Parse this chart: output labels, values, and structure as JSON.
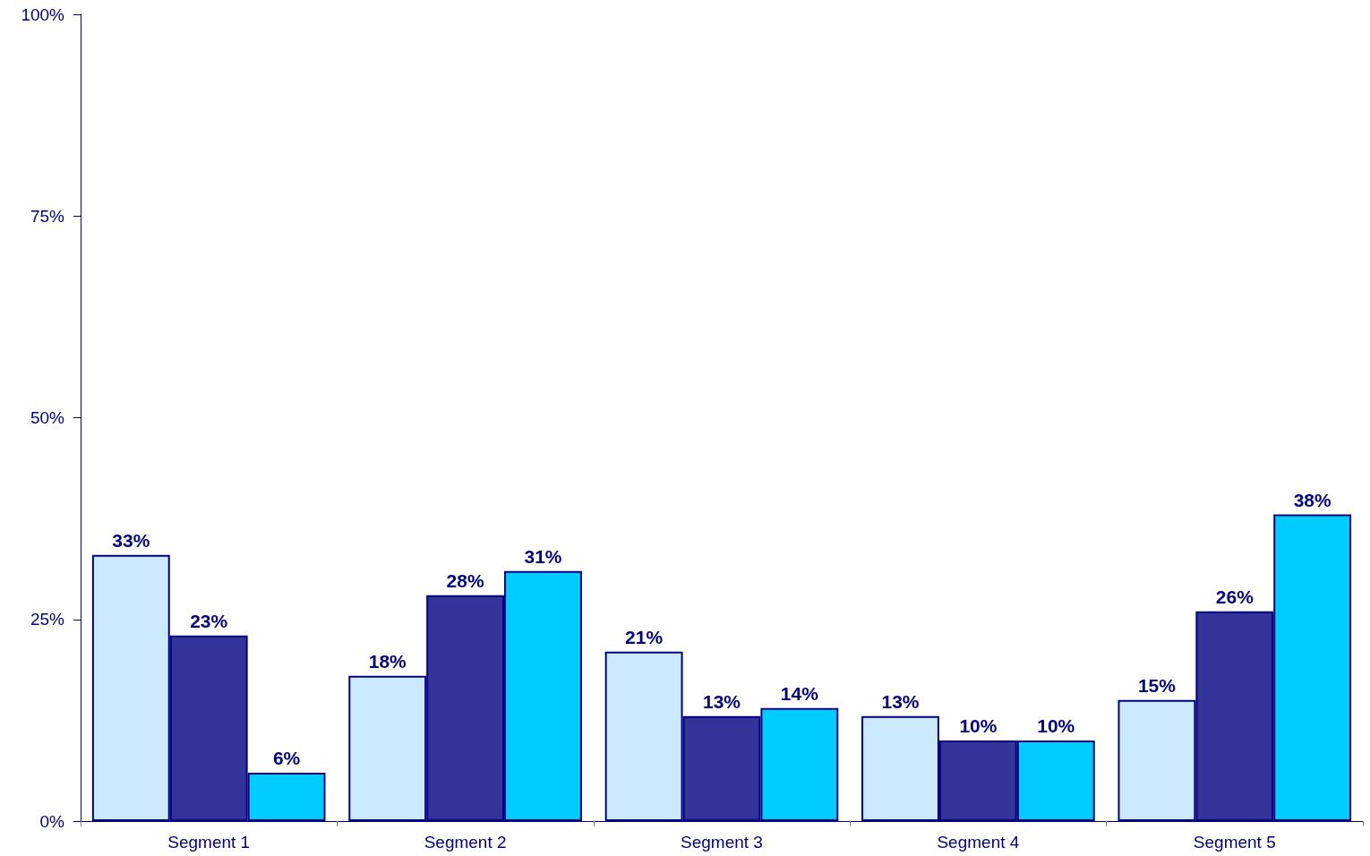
{
  "chart_data": {
    "type": "bar",
    "categories": [
      "Segment 1",
      "Segment 2",
      "Segment 3",
      "Segment 4",
      "Segment 5"
    ],
    "ylim": [
      0,
      100
    ],
    "yticks": [
      {
        "value": 0,
        "label": "0%"
      },
      {
        "value": 25,
        "label": "25%"
      },
      {
        "value": 50,
        "label": "50%"
      },
      {
        "value": 75,
        "label": "75%"
      },
      {
        "value": 100,
        "label": "100%"
      }
    ],
    "grid": false,
    "series": [
      {
        "color": "#cceaff",
        "values": [
          33,
          18,
          21,
          13,
          15
        ],
        "value_labels": [
          "33%",
          "18%",
          "21%",
          "13%",
          "15%"
        ]
      },
      {
        "color": "#333399",
        "values": [
          23,
          28,
          13,
          10,
          26
        ],
        "value_labels": [
          "23%",
          "28%",
          "13%",
          "10%",
          "26%"
        ]
      },
      {
        "color": "#00ccff",
        "values": [
          6,
          31,
          14,
          10,
          38
        ],
        "value_labels": [
          "6%",
          "31%",
          "14%",
          "10%",
          "38%"
        ]
      }
    ]
  }
}
